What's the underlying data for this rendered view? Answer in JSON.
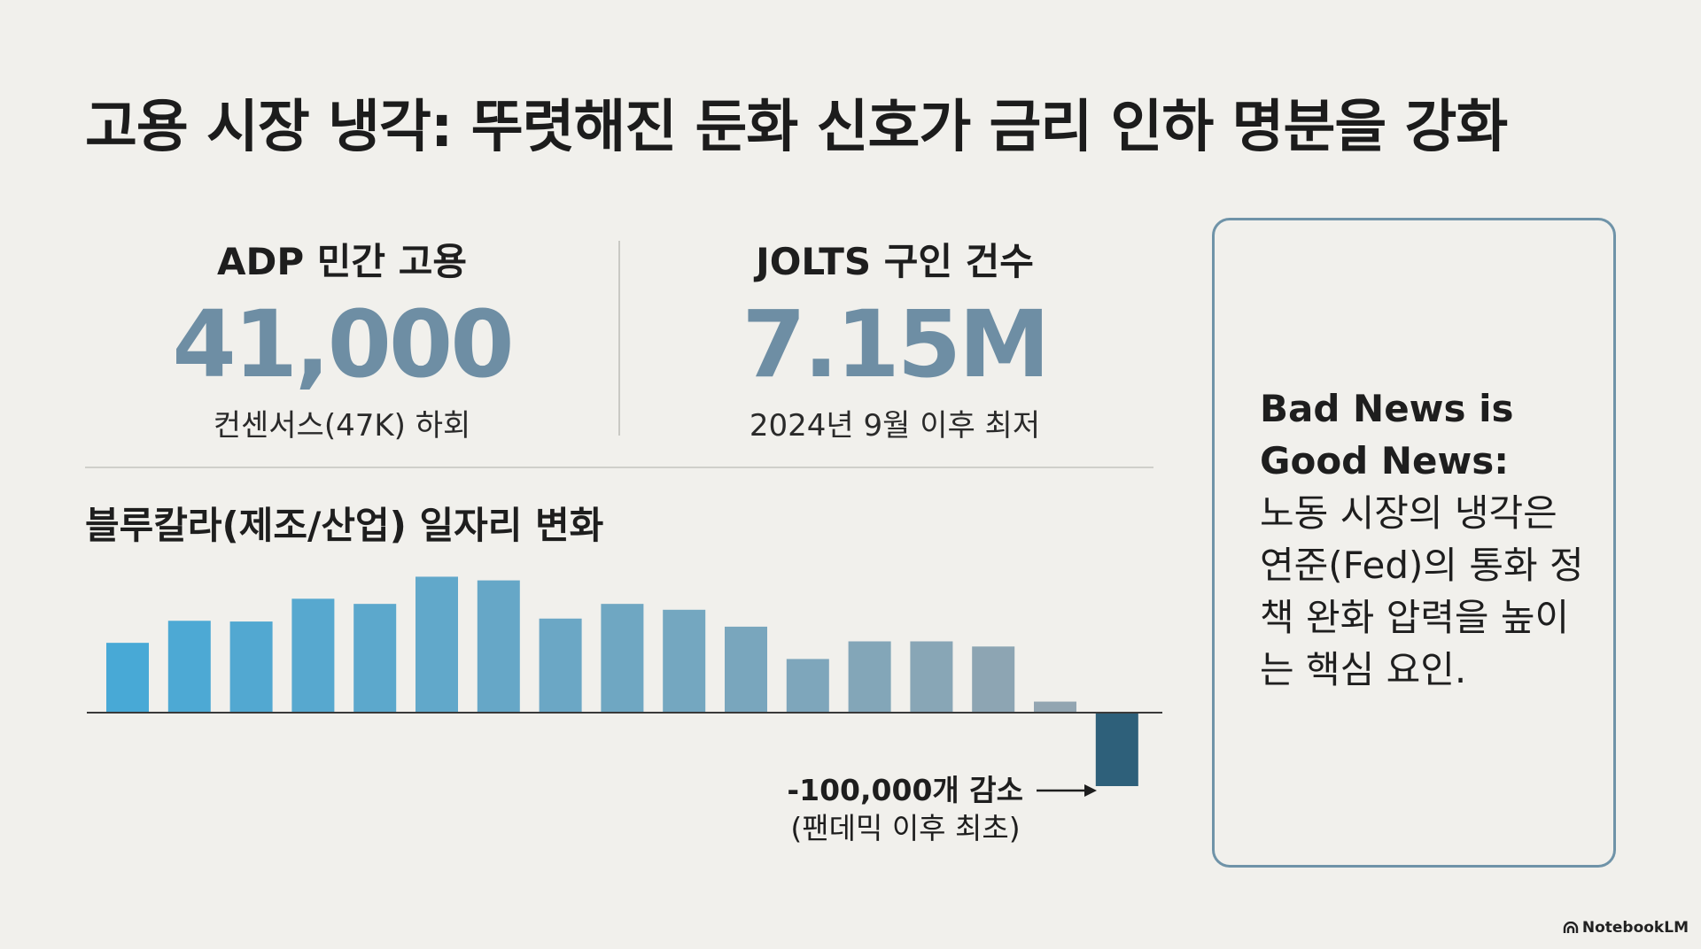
{
  "title": "고용 시장 냉각: 뚜렷해진 둔화 신호가 금리 인하 명분을 강화",
  "metrics": [
    {
      "label": "ADP 민간 고용",
      "value": "41,000",
      "sub": "컨센서스(47K) 하회"
    },
    {
      "label": "JOLTS 구인 건수",
      "value": "7.15M",
      "sub": "2024년 9월 이후 최저"
    }
  ],
  "chart_title": "블루칼라(제조/산업) 일자리 변화",
  "chart_data": {
    "type": "bar",
    "title": "블루칼라(제조/산업) 일자리 변화",
    "values": [
      95000,
      125000,
      124000,
      155000,
      148000,
      185000,
      180000,
      128000,
      148000,
      140000,
      117000,
      73000,
      97000,
      97000,
      90000,
      15000,
      -100000
    ],
    "zero_line": true,
    "annotation": {
      "line1": "-100,000개 감소",
      "line2": "(팬데믹 이후 최초)",
      "target_index": 16
    },
    "colors": {
      "start": "#48a9d6",
      "end": "#92a5b1",
      "negative": "#2e607a"
    }
  },
  "note": {
    "bold": "Bad News is Good News:",
    "body": "노동 시장의 냉각은 연준(Fed)의 통화 정책 완화 압력을 높이는 핵심 요인."
  },
  "brand": "NotebookLM",
  "colors": {
    "background": "#f1f0ec",
    "accent": "#6f93a8",
    "metric_value": "#6e8ea4"
  }
}
